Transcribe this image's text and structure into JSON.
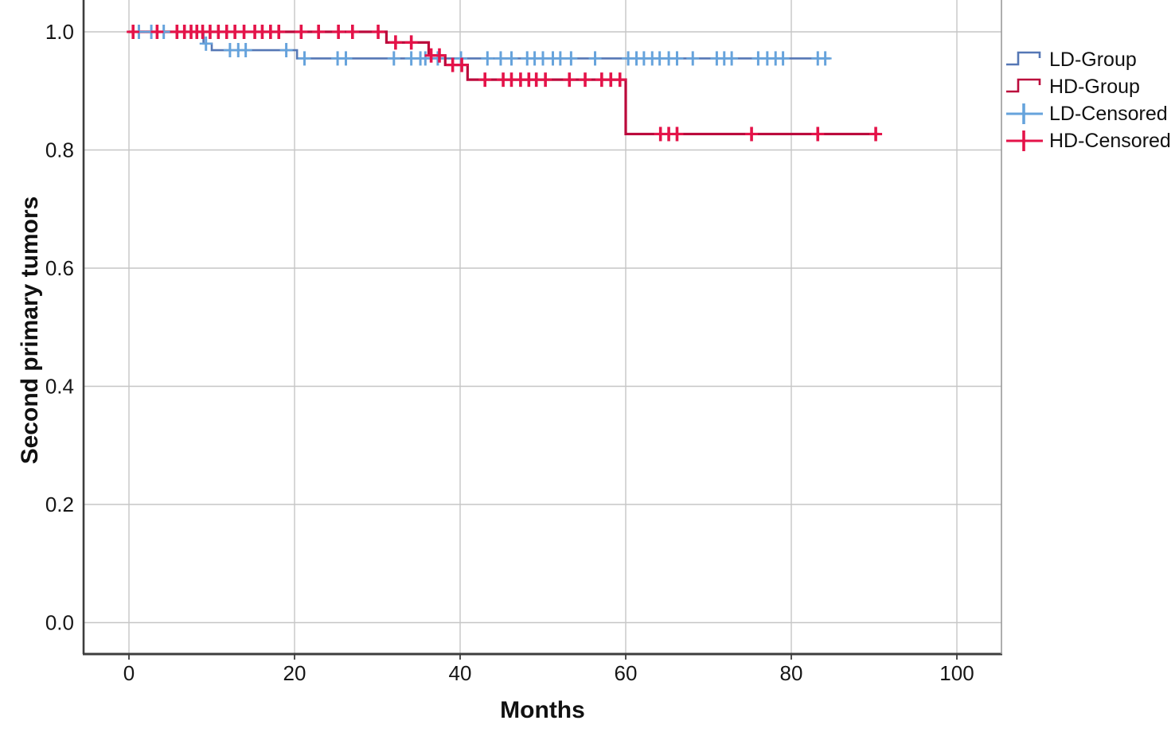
{
  "figure": {
    "xlabel": "Months",
    "ylabel": "Second primary tumors"
  },
  "chart_data": {
    "type": "line",
    "subtype": "kaplan-meier-step-survival",
    "title": "",
    "xlabel": "Months",
    "ylabel": "Second primary tumors",
    "x_ticks": [
      0,
      20,
      40,
      60,
      80,
      100
    ],
    "y_ticks": [
      0.0,
      0.2,
      0.4,
      0.6,
      0.8,
      1.0
    ],
    "y_tick_labels": [
      "0.0",
      "0.2",
      "0.4",
      "0.6",
      "0.8",
      "1.0"
    ],
    "xlim": [
      -5.5,
      105.4
    ],
    "ylim": [
      -0.054,
      1.054
    ],
    "grid": true,
    "legend_position": "right-top",
    "colors": {
      "ld_group": "#5577b5",
      "hd_group": "#bb0a3c",
      "ld_censored": "#66a3dc",
      "hd_censored": "#e41349",
      "gridline": "#c6c6c6",
      "axis_border": "#3d3d3d",
      "right_border": "#9a9a9a",
      "text": "#161616"
    },
    "series": [
      {
        "name": "LD-Group",
        "color_key": "ld_group",
        "stroke_width": 2.6,
        "end_month": 84.7,
        "steps": [
          {
            "t": 0,
            "s": 1.0
          },
          {
            "t": 9.0,
            "s": 0.98
          },
          {
            "t": 10.0,
            "s": 0.969
          },
          {
            "t": 20.3,
            "s": 0.955
          }
        ]
      },
      {
        "name": "HD-Group",
        "color_key": "hd_group",
        "stroke_width": 3.2,
        "end_month": 90.6,
        "steps": [
          {
            "t": 0,
            "s": 1.0
          },
          {
            "t": 31.1,
            "s": 0.982
          },
          {
            "t": 36.2,
            "s": 0.96
          },
          {
            "t": 38.2,
            "s": 0.944
          },
          {
            "t": 40.9,
            "s": 0.919
          },
          {
            "t": 60.0,
            "s": 0.827
          }
        ]
      }
    ],
    "censored_series": [
      {
        "name": "LD-Censored",
        "color_key": "ld_censored",
        "stroke_width": 3.0,
        "marks": [
          [
            1.2,
            1.0
          ],
          [
            2.7,
            1.0
          ],
          [
            4.2,
            1.0
          ],
          [
            9.3,
            0.98
          ],
          [
            12.2,
            0.969
          ],
          [
            13.2,
            0.969
          ],
          [
            14.1,
            0.969
          ],
          [
            19.0,
            0.969
          ],
          [
            21.2,
            0.955
          ],
          [
            25.2,
            0.955
          ],
          [
            26.2,
            0.955
          ],
          [
            32.0,
            0.955
          ],
          [
            34.1,
            0.955
          ],
          [
            35.2,
            0.955
          ],
          [
            35.8,
            0.955
          ],
          [
            37.3,
            0.955
          ],
          [
            40.1,
            0.955
          ],
          [
            43.3,
            0.955
          ],
          [
            44.9,
            0.955
          ],
          [
            46.2,
            0.955
          ],
          [
            48.1,
            0.955
          ],
          [
            49.0,
            0.955
          ],
          [
            50.0,
            0.955
          ],
          [
            51.2,
            0.955
          ],
          [
            52.1,
            0.955
          ],
          [
            53.4,
            0.955
          ],
          [
            56.3,
            0.955
          ],
          [
            60.3,
            0.955
          ],
          [
            61.3,
            0.955
          ],
          [
            62.2,
            0.955
          ],
          [
            63.2,
            0.955
          ],
          [
            64.1,
            0.955
          ],
          [
            65.2,
            0.955
          ],
          [
            66.2,
            0.955
          ],
          [
            68.1,
            0.955
          ],
          [
            71.0,
            0.955
          ],
          [
            71.9,
            0.955
          ],
          [
            72.8,
            0.955
          ],
          [
            76.0,
            0.955
          ],
          [
            77.1,
            0.955
          ],
          [
            78.1,
            0.955
          ],
          [
            79.0,
            0.955
          ],
          [
            83.2,
            0.955
          ],
          [
            84.1,
            0.955
          ]
        ]
      },
      {
        "name": "HD-Censored",
        "color_key": "hd_censored",
        "stroke_width": 3.6,
        "marks": [
          [
            0.5,
            1.0
          ],
          [
            3.4,
            1.0
          ],
          [
            5.8,
            1.0
          ],
          [
            6.7,
            1.0
          ],
          [
            7.5,
            1.0
          ],
          [
            8.2,
            1.0
          ],
          [
            8.9,
            1.0
          ],
          [
            9.8,
            1.0
          ],
          [
            10.8,
            1.0
          ],
          [
            11.8,
            1.0
          ],
          [
            12.8,
            1.0
          ],
          [
            13.9,
            1.0
          ],
          [
            15.2,
            1.0
          ],
          [
            16.1,
            1.0
          ],
          [
            17.1,
            1.0
          ],
          [
            18.1,
            1.0
          ],
          [
            20.8,
            1.0
          ],
          [
            22.9,
            1.0
          ],
          [
            25.3,
            1.0
          ],
          [
            27.0,
            1.0
          ],
          [
            30.1,
            1.0
          ],
          [
            32.2,
            0.982
          ],
          [
            34.1,
            0.982
          ],
          [
            36.5,
            0.96
          ],
          [
            37.5,
            0.96
          ],
          [
            39.1,
            0.944
          ],
          [
            40.2,
            0.944
          ],
          [
            43.0,
            0.919
          ],
          [
            45.2,
            0.919
          ],
          [
            46.2,
            0.919
          ],
          [
            47.3,
            0.919
          ],
          [
            48.3,
            0.919
          ],
          [
            49.2,
            0.919
          ],
          [
            50.3,
            0.919
          ],
          [
            53.2,
            0.919
          ],
          [
            55.1,
            0.919
          ],
          [
            57.1,
            0.919
          ],
          [
            58.2,
            0.919
          ],
          [
            59.3,
            0.919
          ],
          [
            64.2,
            0.827
          ],
          [
            65.2,
            0.827
          ],
          [
            66.2,
            0.827
          ],
          [
            75.2,
            0.827
          ],
          [
            83.2,
            0.827
          ],
          [
            90.2,
            0.827
          ]
        ]
      }
    ],
    "legend": {
      "entries": [
        "LD-Group",
        "HD-Group",
        "LD-Censored",
        "HD-Censored"
      ]
    }
  }
}
